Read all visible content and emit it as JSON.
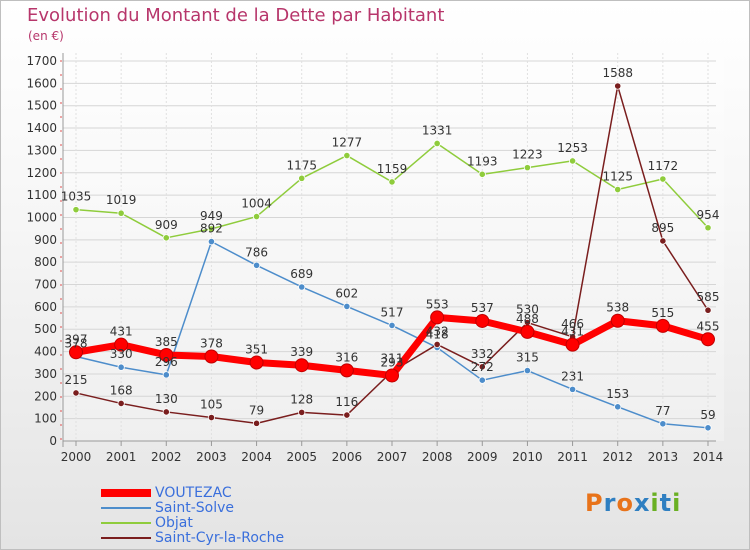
{
  "header": {
    "title": "Evolution du Montant de la Dette par Habitant",
    "unit": "(en €)"
  },
  "logo": {
    "letters": [
      "P",
      "r",
      "o",
      "x",
      "i",
      "t",
      "i"
    ],
    "colors": [
      "#e8731a",
      "#2f7fc1",
      "#e8731a",
      "#2f7fc1",
      "#6ab023",
      "#2f7fc1",
      "#6ab023"
    ]
  },
  "chart_data": {
    "type": "line",
    "x": [
      "2000",
      "2001",
      "2002",
      "2003",
      "2004",
      "2005",
      "2006",
      "2007",
      "2008",
      "2009",
      "2010",
      "2011",
      "2012",
      "2013",
      "2014"
    ],
    "ylim": [
      0,
      1700
    ],
    "yticks": [
      0,
      100,
      200,
      300,
      400,
      500,
      600,
      700,
      800,
      900,
      1000,
      1100,
      1200,
      1300,
      1400,
      1500,
      1600,
      1700
    ],
    "grid": true,
    "legend_position": "bottom-left",
    "series": [
      {
        "name": "VOUTEZAC",
        "color": "#ff0000",
        "values": [
          397,
          431,
          385,
          378,
          351,
          339,
          316,
          293,
          553,
          537,
          488,
          431,
          538,
          515,
          455
        ]
      },
      {
        "name": "Saint-Solve",
        "color": "#4d8dcb",
        "values": [
          378,
          330,
          296,
          892,
          786,
          689,
          602,
          517,
          418,
          272,
          315,
          231,
          153,
          77,
          59
        ]
      },
      {
        "name": "Objat",
        "color": "#8fcc3c",
        "values": [
          1035,
          1019,
          909,
          949,
          1004,
          1175,
          1277,
          1159,
          1331,
          1193,
          1223,
          1253,
          1125,
          1172,
          954
        ]
      },
      {
        "name": "Saint-Cyr-la-Roche",
        "color": "#7a1e1e",
        "values": [
          215,
          168,
          130,
          105,
          79,
          128,
          116,
          311,
          432,
          332,
          530,
          466,
          1588,
          895,
          585
        ]
      }
    ]
  }
}
